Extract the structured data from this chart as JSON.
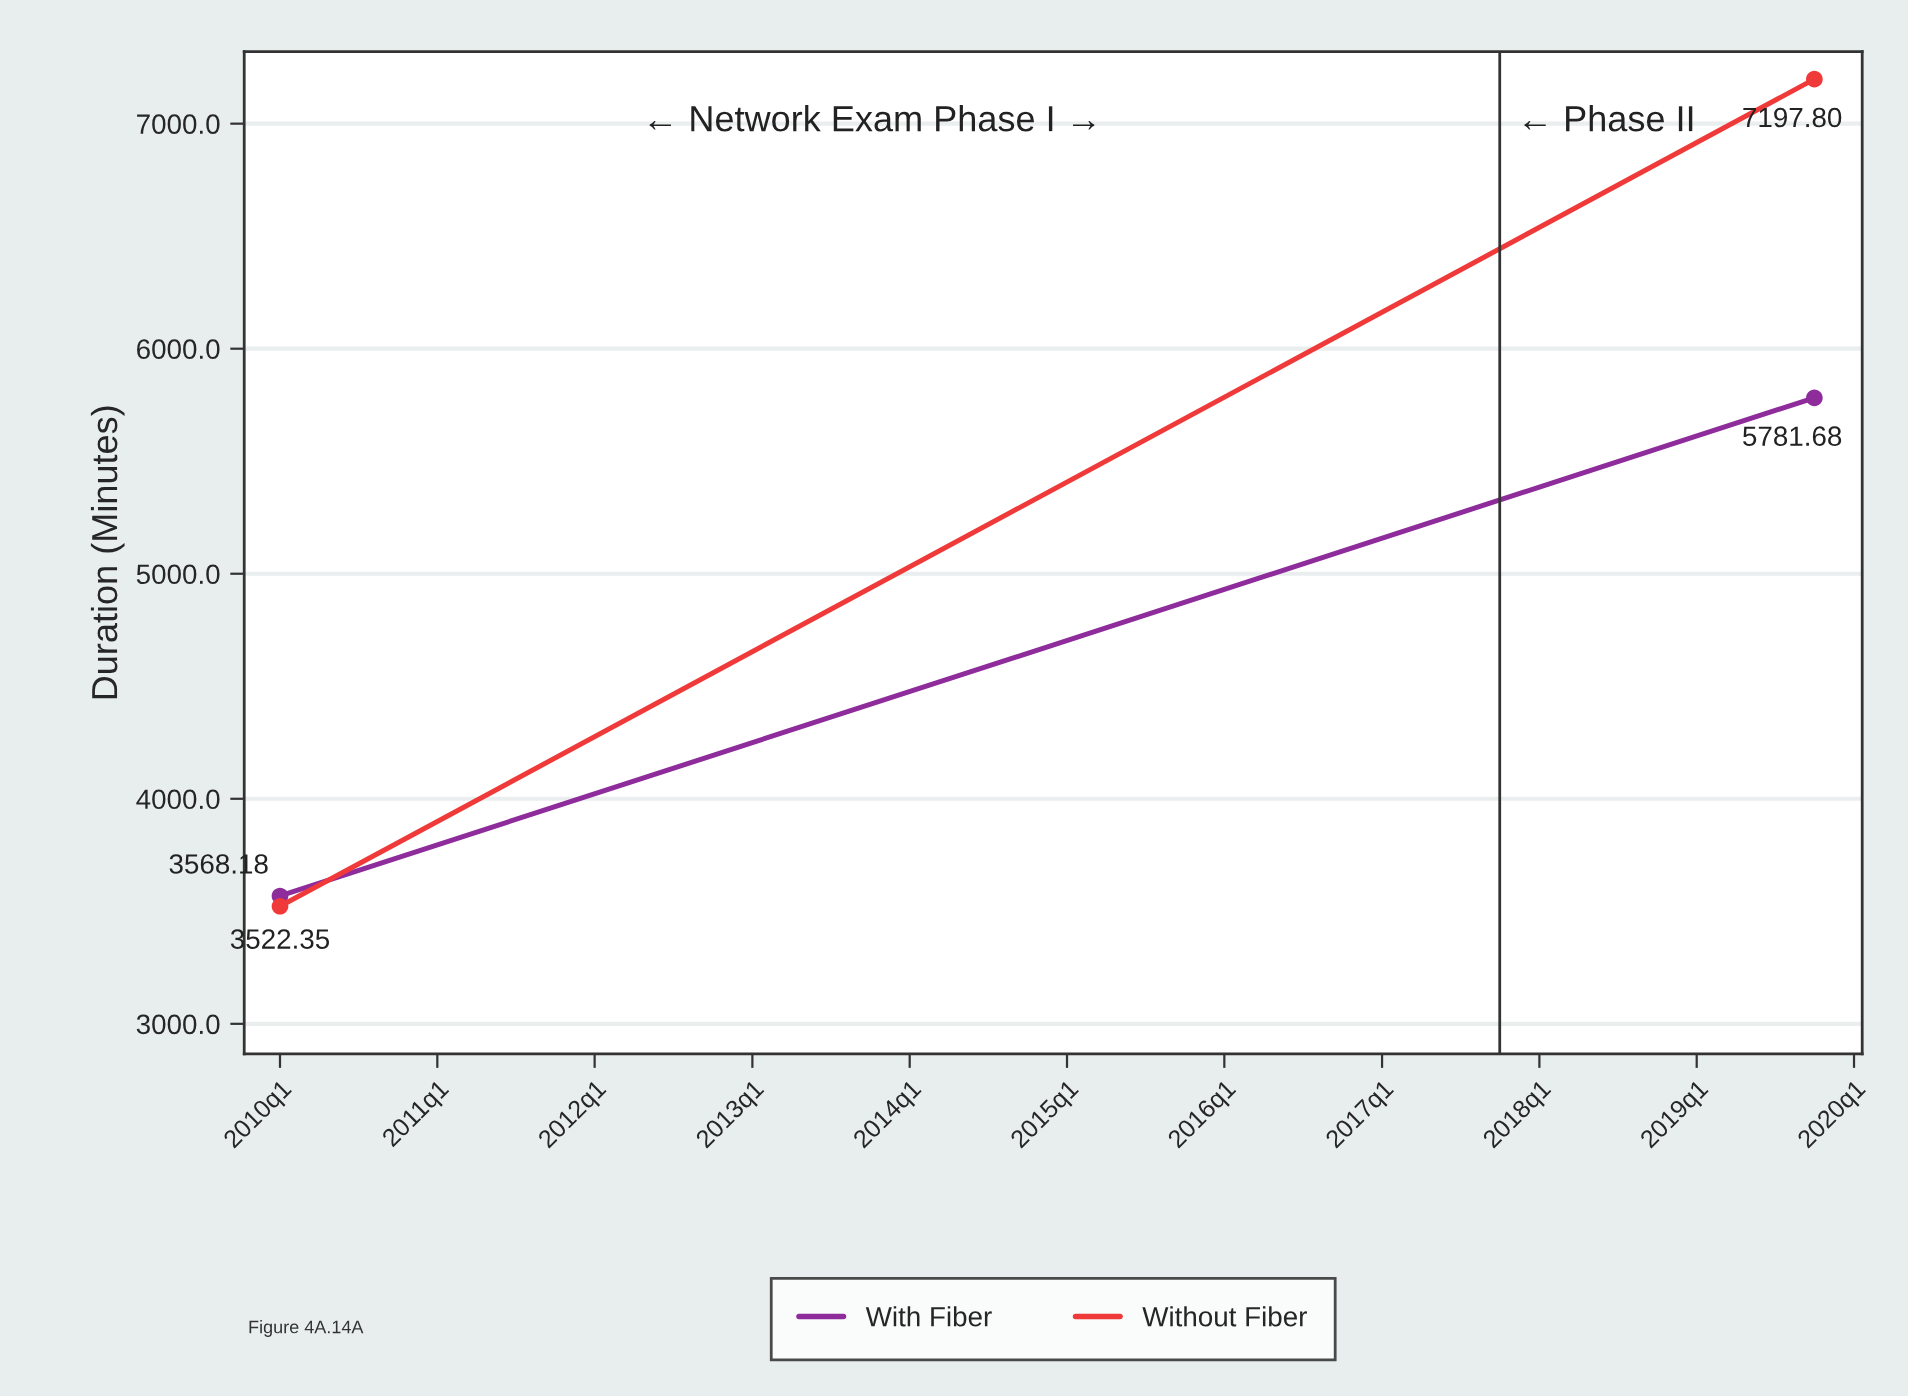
{
  "chart_data": {
    "type": "line",
    "ylabel": "Duration (Minutes)",
    "x": [
      "2010-01-01",
      "2019-10-01"
    ],
    "series": [
      {
        "name": "With Fiber",
        "color": "#8e2c9c",
        "values": [
          3568.18,
          5781.68
        ],
        "value_labels": [
          "3568.18",
          "5781.68"
        ]
      },
      {
        "name": "Without Fiber",
        "color": "#f03a3a",
        "values": [
          3522.35,
          7197.8
        ],
        "value_labels": [
          "3522.35",
          "7197.80"
        ]
      }
    ],
    "marker": "circle",
    "line_style": "solid",
    "grid": "y",
    "legend": "bottom",
    "xlim": [
      "2009-10-10",
      "2020-01-20"
    ],
    "ylim": [
      2866,
      7320
    ],
    "xticks": [
      {
        "value": "2010-01-01",
        "label": "2010q1"
      },
      {
        "value": "2011-01-01",
        "label": "2011q1"
      },
      {
        "value": "2012-01-01",
        "label": "2012q1"
      },
      {
        "value": "2013-01-01",
        "label": "2013q1"
      },
      {
        "value": "2014-01-01",
        "label": "2014q1"
      },
      {
        "value": "2015-01-01",
        "label": "2015q1"
      },
      {
        "value": "2016-01-01",
        "label": "2016q1"
      },
      {
        "value": "2017-01-01",
        "label": "2017q1"
      },
      {
        "value": "2018-01-01",
        "label": "2018q1"
      },
      {
        "value": "2019-01-01",
        "label": "2019q1"
      },
      {
        "value": "2020-01-01",
        "label": "2020q1"
      }
    ],
    "yticks": [
      {
        "value": 3000,
        "label": "3000.0"
      },
      {
        "value": 4000,
        "label": "4000.0"
      },
      {
        "value": 5000,
        "label": "5000.0"
      },
      {
        "value": 6000,
        "label": "6000.0"
      },
      {
        "value": 7000,
        "label": "7000.0"
      }
    ],
    "ref_lines": [
      {
        "axis": "x",
        "value": "2017-10-01",
        "color": "#333333"
      }
    ],
    "annotations": [
      "← Network Exam Phase I →",
      "← Phase II",
      "Figure 4A.14A"
    ]
  }
}
